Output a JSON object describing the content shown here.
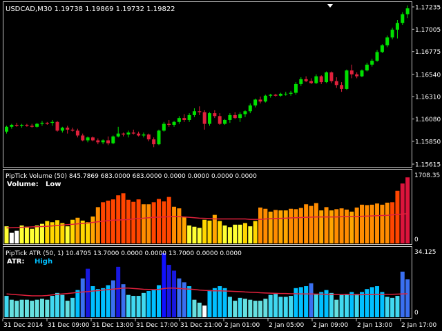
{
  "colors": {
    "background": "#000000",
    "frame": "#c8c8c8",
    "text": "#ffffff",
    "bull": "#00e000",
    "bear": "#e0213c",
    "ma_line": "#e0213c",
    "atr_label": "#00bfff"
  },
  "main": {
    "symbol_line": "USDCAD,M30  1.19738 1.19869 1.19732 1.19822",
    "price_labels": [
      "1.17235",
      "1.17005",
      "1.16775",
      "1.16540",
      "1.16310",
      "1.16080",
      "1.15850",
      "1.15615"
    ],
    "price_min": 1.15615,
    "price_max": 1.17235,
    "marker_icon": "triangle-down-icon"
  },
  "volume": {
    "header": "PipTick Volume  (50) 845.7869 683.0000 683.0000 0.0000 0.0000 0.0000 0.0000",
    "label": "Volume:  Low",
    "label_prefix": "Volume:",
    "label_value": "Low",
    "scale_max": "1708.35",
    "scale_min": "0",
    "max": 1708.35
  },
  "atr": {
    "header": "PipTick ATR  (50, 1) 10.4705 13.7000 0.0000 0.0000 13.7000 0.0000 0.0000",
    "label_prefix": "ATR:",
    "label_value": "High",
    "scale_max": "34.125",
    "scale_min": "0",
    "max": 34.125
  },
  "time_labels": [
    "31 Dec 2014",
    "31 Dec 09:00",
    "31 Dec 13:00",
    "31 Dec 17:00",
    "31 Dec 21:00",
    "2 Jan 01:00",
    "2 Jan 05:00",
    "2 Jan 09:00",
    "2 Jan 13:00",
    "2 Jan 17:00"
  ],
  "chart_data": {
    "type": "candlestick",
    "candles": [
      [
        1.1595,
        1.1601,
        1.1593,
        1.16
      ],
      [
        1.16,
        1.1603,
        1.1598,
        1.1602
      ],
      [
        1.1602,
        1.1604,
        1.16,
        1.1601
      ],
      [
        1.1601,
        1.1603,
        1.1599,
        1.1602
      ],
      [
        1.1602,
        1.1603,
        1.16,
        1.1601
      ],
      [
        1.1601,
        1.1603,
        1.1599,
        1.16
      ],
      [
        1.16,
        1.1604,
        1.1599,
        1.1603
      ],
      [
        1.1603,
        1.1606,
        1.1601,
        1.1604
      ],
      [
        1.1604,
        1.1605,
        1.1602,
        1.1603
      ],
      [
        1.1604,
        1.1607,
        1.1601,
        1.1605
      ],
      [
        1.1605,
        1.1606,
        1.1595,
        1.1596
      ],
      [
        1.1596,
        1.16,
        1.1594,
        1.1599
      ],
      [
        1.1599,
        1.1601,
        1.1593,
        1.1597
      ],
      [
        1.1597,
        1.1599,
        1.1595,
        1.1596
      ],
      [
        1.1596,
        1.1598,
        1.1589,
        1.1591
      ],
      [
        1.1591,
        1.1593,
        1.1585,
        1.1586
      ],
      [
        1.1586,
        1.159,
        1.1584,
        1.1589
      ],
      [
        1.1589,
        1.159,
        1.1585,
        1.1586
      ],
      [
        1.1586,
        1.1588,
        1.1582,
        1.1584
      ],
      [
        1.1584,
        1.1587,
        1.1582,
        1.1586
      ],
      [
        1.1586,
        1.159,
        1.1581,
        1.1583
      ],
      [
        1.1583,
        1.1591,
        1.1582,
        1.159
      ],
      [
        1.159,
        1.16,
        1.1589,
        1.1593
      ],
      [
        1.1593,
        1.1594,
        1.159,
        1.1592
      ],
      [
        1.1592,
        1.1596,
        1.1589,
        1.1594
      ],
      [
        1.1594,
        1.1597,
        1.1592,
        1.1593
      ],
      [
        1.1593,
        1.1595,
        1.159,
        1.1591
      ],
      [
        1.1591,
        1.1594,
        1.1589,
        1.1592
      ],
      [
        1.1592,
        1.1593,
        1.1585,
        1.1587
      ],
      [
        1.1587,
        1.1589,
        1.1579,
        1.1582
      ],
      [
        1.1582,
        1.1597,
        1.1581,
        1.1596
      ],
      [
        1.1596,
        1.1605,
        1.1595,
        1.1603
      ],
      [
        1.1603,
        1.1607,
        1.16,
        1.1602
      ],
      [
        1.1602,
        1.1606,
        1.16,
        1.1605
      ],
      [
        1.1605,
        1.1611,
        1.1603,
        1.1609
      ],
      [
        1.1609,
        1.1613,
        1.1605,
        1.1607
      ],
      [
        1.1607,
        1.1614,
        1.1605,
        1.1612
      ],
      [
        1.1612,
        1.1619,
        1.161,
        1.1616
      ],
      [
        1.1616,
        1.1621,
        1.1612,
        1.1615
      ],
      [
        1.1615,
        1.1617,
        1.1597,
        1.1603
      ],
      [
        1.1603,
        1.1615,
        1.1601,
        1.1614
      ],
      [
        1.1614,
        1.1617,
        1.1609,
        1.1611
      ],
      [
        1.1611,
        1.1614,
        1.1602,
        1.1603
      ],
      [
        1.1603,
        1.1608,
        1.1602,
        1.1607
      ],
      [
        1.1607,
        1.1614,
        1.1604,
        1.1612
      ],
      [
        1.1612,
        1.1615,
        1.1608,
        1.1609
      ],
      [
        1.1609,
        1.1615,
        1.1605,
        1.1613
      ],
      [
        1.1613,
        1.1617,
        1.161,
        1.1616
      ],
      [
        1.1616,
        1.1624,
        1.1614,
        1.1622
      ],
      [
        1.1622,
        1.1629,
        1.162,
        1.1628
      ],
      [
        1.1628,
        1.1631,
        1.1624,
        1.1626
      ],
      [
        1.1626,
        1.1633,
        1.1625,
        1.1632
      ],
      [
        1.1632,
        1.1634,
        1.163,
        1.1633
      ],
      [
        1.1633,
        1.1634,
        1.1631,
        1.1632
      ],
      [
        1.1632,
        1.1635,
        1.1631,
        1.1634
      ],
      [
        1.1634,
        1.1636,
        1.1632,
        1.1634
      ],
      [
        1.1634,
        1.1637,
        1.1632,
        1.1635
      ],
      [
        1.1635,
        1.1646,
        1.1633,
        1.1644
      ],
      [
        1.1644,
        1.1651,
        1.1642,
        1.1649
      ],
      [
        1.1649,
        1.1652,
        1.1646,
        1.1647
      ],
      [
        1.1647,
        1.165,
        1.1644,
        1.1645
      ],
      [
        1.1645,
        1.1654,
        1.1644,
        1.1652
      ],
      [
        1.1652,
        1.1653,
        1.1644,
        1.1646
      ],
      [
        1.1646,
        1.1657,
        1.1645,
        1.1656
      ],
      [
        1.1656,
        1.1657,
        1.1645,
        1.1647
      ],
      [
        1.1647,
        1.1651,
        1.164,
        1.1643
      ],
      [
        1.1643,
        1.1646,
        1.1636,
        1.1639
      ],
      [
        1.1639,
        1.1659,
        1.1638,
        1.1658
      ],
      [
        1.1658,
        1.1664,
        1.165,
        1.1654
      ],
      [
        1.1654,
        1.1656,
        1.165,
        1.1652
      ],
      [
        1.1652,
        1.1659,
        1.1651,
        1.1658
      ],
      [
        1.1658,
        1.1666,
        1.1657,
        1.1664
      ],
      [
        1.1664,
        1.167,
        1.1662,
        1.1668
      ],
      [
        1.1668,
        1.1679,
        1.1667,
        1.1677
      ],
      [
        1.1677,
        1.1685,
        1.1676,
        1.1684
      ],
      [
        1.1684,
        1.1694,
        1.1682,
        1.1692
      ],
      [
        1.1692,
        1.1702,
        1.169,
        1.17
      ],
      [
        1.17,
        1.171,
        1.1691,
        1.1707
      ],
      [
        1.1707,
        1.1718,
        1.1705,
        1.1716
      ],
      [
        1.1716,
        1.1725,
        1.1712,
        1.1722
      ]
    ],
    "volume": [
      420,
      260,
      310,
      440,
      410,
      360,
      440,
      480,
      550,
      520,
      570,
      500,
      420,
      580,
      630,
      560,
      520,
      660,
      890,
      1010,
      1050,
      1080,
      1180,
      1230,
      1070,
      1020,
      1080,
      960,
      960,
      1010,
      1090,
      1030,
      1140,
      900,
      860,
      660,
      440,
      410,
      380,
      580,
      560,
      700,
      550,
      440,
      400,
      460,
      460,
      500,
      420,
      550,
      880,
      850,
      780,
      820,
      810,
      810,
      850,
      840,
      870,
      960,
      920,
      990,
      810,
      890,
      810,
      840,
      860,
      830,
      780,
      880,
      950,
      940,
      950,
      980,
      950,
      1000,
      1010,
      1290,
      1470,
      1620
    ],
    "volume_ma": [
      380,
      385,
      390,
      395,
      400,
      405,
      410,
      415,
      420,
      430,
      440,
      450,
      460,
      470,
      480,
      490,
      500,
      515,
      530,
      545,
      560,
      570,
      575,
      580,
      585,
      600,
      610,
      620,
      630,
      640,
      645,
      650,
      655,
      655,
      655,
      650,
      640,
      630,
      620,
      615,
      610,
      600,
      600,
      600,
      600,
      600,
      600,
      600,
      590,
      590,
      590,
      600,
      605,
      610,
      615,
      620,
      625,
      630,
      635,
      640,
      645,
      650,
      650,
      650,
      650,
      650,
      655,
      655,
      660,
      660,
      665,
      670,
      675,
      680,
      685,
      690,
      700,
      710,
      720,
      730
    ],
    "atr": [
      11.0,
      9.0,
      8.5,
      9.0,
      9.0,
      8.5,
      9.0,
      9.5,
      9.0,
      11.0,
      12.5,
      11.5,
      8.5,
      10.0,
      14.0,
      20.0,
      25.0,
      16.0,
      14.5,
      15.0,
      16.5,
      19.0,
      26.0,
      17.0,
      11.5,
      11.0,
      11.0,
      12.5,
      13.5,
      14.0,
      16.5,
      33.0,
      27.0,
      24.0,
      20.0,
      18.0,
      16.0,
      9.0,
      7.5,
      6.0,
      14.0,
      15.0,
      16.0,
      15.0,
      10.5,
      8.5,
      10.0,
      9.5,
      9.0,
      8.5,
      8.5,
      9.5,
      11.5,
      12.0,
      10.5,
      10.5,
      11.0,
      15.0,
      15.5,
      16.0,
      17.5,
      12.0,
      13.0,
      14.0,
      12.5,
      9.0,
      11.5,
      12.0,
      13.0,
      12.0,
      13.0,
      14.5,
      15.5,
      16.0,
      13.0,
      10.5,
      10.0,
      11.0,
      23.5,
      19.5
    ],
    "atr_ma": [
      12.0,
      11.8,
      11.6,
      11.4,
      11.2,
      11.0,
      11.0,
      11.0,
      11.2,
      11.5,
      11.8,
      12.0,
      12.2,
      12.5,
      12.8,
      13.0,
      13.2,
      13.5,
      13.7,
      14.0,
      14.2,
      14.5,
      14.7,
      15.0,
      15.0,
      14.8,
      14.6,
      14.4,
      14.3,
      14.2,
      14.3,
      14.8,
      15.0,
      15.0,
      14.8,
      14.6,
      14.5,
      14.3,
      14.0,
      13.8,
      13.7,
      13.6,
      13.6,
      13.5,
      13.4,
      13.3,
      13.2,
      13.0,
      12.9,
      12.8,
      12.6,
      12.5,
      12.4,
      12.3,
      12.2,
      12.2,
      12.1,
      12.1,
      12.0,
      12.0,
      12.0,
      11.9,
      11.9,
      11.8,
      11.8,
      11.7,
      11.7,
      11.7,
      11.6,
      11.6,
      11.6,
      11.7,
      11.7,
      11.8,
      11.8,
      11.8,
      11.8,
      11.9,
      12.0,
      12.1
    ]
  }
}
